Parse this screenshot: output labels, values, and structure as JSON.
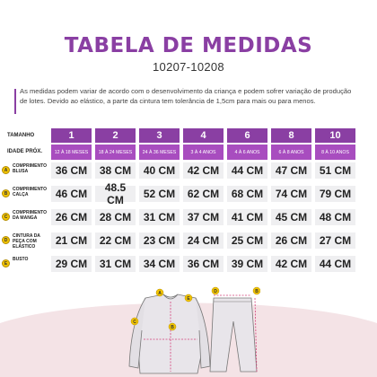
{
  "header": {
    "title": "TABELA DE MEDIDAS",
    "subtitle": "10207-10208",
    "note": "As medidas podem variar de acordo com o desenvolvimento da criança e podem sofrer variação de produção de lotes. Devido ao elástico, a parte da cintura tem tolerância de 1,5cm para mais ou para menos."
  },
  "table": {
    "size_label": "TAMANHO",
    "age_label": "IDADE PRÓX.",
    "sizes": [
      "1",
      "2",
      "3",
      "4",
      "6",
      "8",
      "10"
    ],
    "ages": [
      "12 À 18 MESES",
      "18 À 24 MESES",
      "24 À 36 MESES",
      "3 À 4 ANOS",
      "4 À 6 ANOS",
      "6 À 8 ANOS",
      "8 À 10 ANOS"
    ],
    "rows": [
      {
        "badge": "A",
        "label": "COMPRIMENTO BLUSA",
        "values": [
          "36 CM",
          "38 CM",
          "40 CM",
          "42 CM",
          "44 CM",
          "47 CM",
          "51 CM"
        ]
      },
      {
        "badge": "B",
        "label": "COMPRIMENTO CALÇA",
        "values": [
          "46 CM",
          "48.5 CM",
          "52 CM",
          "62 CM",
          "68 CM",
          "74 CM",
          "79 CM"
        ]
      },
      {
        "badge": "C",
        "label": "COMPRIMENTO DA MANGA",
        "values": [
          "26 CM",
          "28 CM",
          "31 CM",
          "37 CM",
          "41 CM",
          "45 CM",
          "48 CM"
        ]
      },
      {
        "badge": "D",
        "label": "CINTURA DA PEÇA COM ELÁSTICO",
        "values": [
          "21 CM",
          "22 CM",
          "23 CM",
          "24 CM",
          "25 CM",
          "26 CM",
          "27 CM"
        ]
      },
      {
        "badge": "E",
        "label": "BUSTO",
        "values": [
          "29 CM",
          "31 CM",
          "34 CM",
          "36 CM",
          "39 CM",
          "42 CM",
          "44 CM"
        ]
      }
    ]
  },
  "diagram": {
    "badges": [
      "A",
      "B",
      "C",
      "D",
      "E"
    ]
  },
  "colors": {
    "accent": "#8a3fa3",
    "age_row": "#a84dbf",
    "badge": "#f2c400",
    "cell_bg": "#efeff1",
    "pink_bg": "#f4e3e6"
  }
}
